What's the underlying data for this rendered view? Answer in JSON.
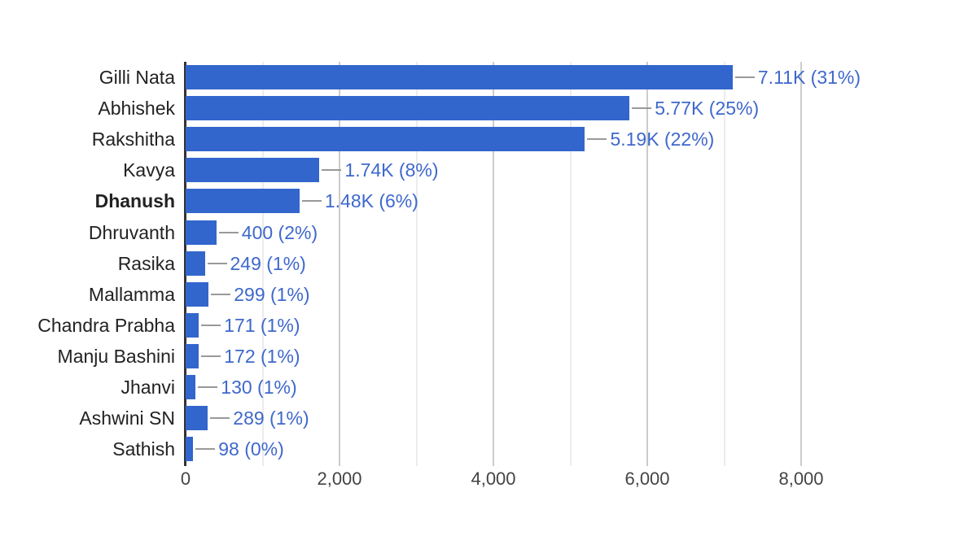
{
  "chart_data": {
    "type": "bar",
    "orientation": "horizontal",
    "title": "",
    "xlabel": "",
    "ylabel": "",
    "legend": "none",
    "grid": "on",
    "categories": [
      "Gilli Nata",
      "Abhishek",
      "Rakshitha",
      "Kavya",
      "Dhanush",
      "Dhruvanth",
      "Rasika",
      "Mallamma",
      "Chandra Prabha",
      "Manju Bashini",
      "Jhanvi",
      "Ashwini SN",
      "Sathish"
    ],
    "values": [
      7110,
      5770,
      5190,
      1740,
      1480,
      400,
      249,
      299,
      171,
      172,
      130,
      289,
      98
    ],
    "annotations": [
      "7.11K (31%)",
      "5.77K (25%)",
      "5.19K (22%)",
      "1.74K (8%)",
      "1.48K (6%)",
      "400 (2%)",
      "249 (1%)",
      "299 (1%)",
      "171 (1%)",
      "172 (1%)",
      "130 (1%)",
      "289 (1%)",
      "98 (0%)"
    ],
    "highlighted_category": "Dhanush",
    "xlim": [
      0,
      8000
    ],
    "x_ticks": [
      {
        "value": 0,
        "label": "0"
      },
      {
        "value": 2000,
        "label": "2,000"
      },
      {
        "value": 4000,
        "label": "4,000"
      },
      {
        "value": 6000,
        "label": "6,000"
      },
      {
        "value": 8000,
        "label": "8,000"
      }
    ],
    "minor_gridline_values": [
      1000,
      3000,
      5000,
      7000
    ],
    "colors": {
      "bar": "#3366cc",
      "annotation_text": "#3e68cc",
      "connector": "#999999",
      "category_text": "#222222",
      "axis_tick_text": "#444444",
      "major_grid": "#cccccc",
      "minor_grid": "#ececec",
      "baseline": "#333333",
      "background": "#ffffff"
    }
  }
}
